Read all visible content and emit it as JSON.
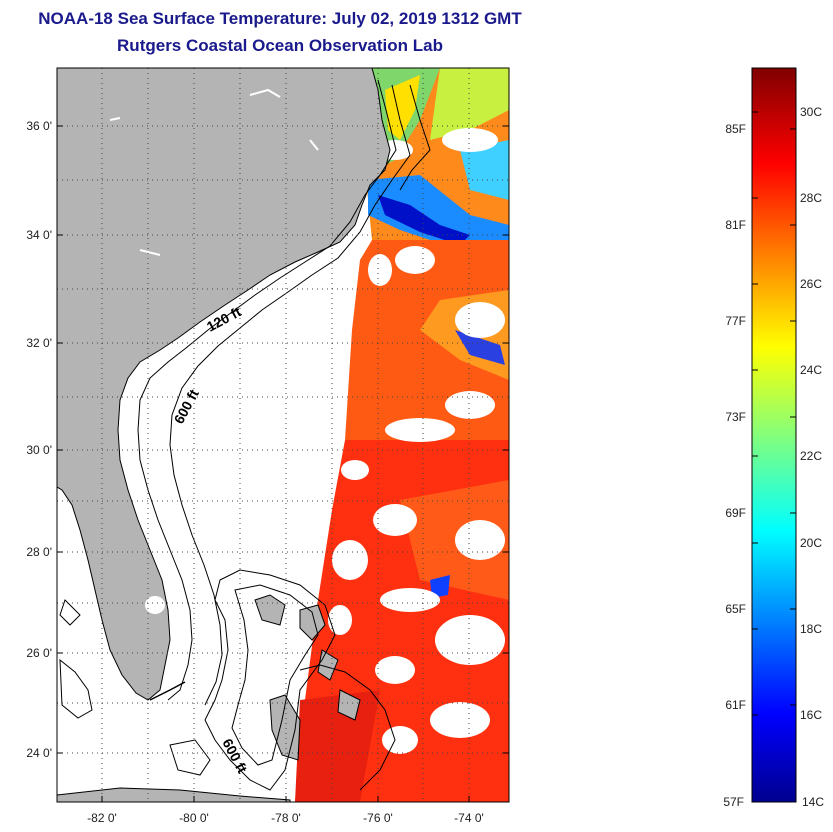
{
  "title": "NOAA-18 Sea Surface Temperature:  July 02, 2019 1312 GMT",
  "subtitle": "Rutgers Coastal Ocean Observation Lab",
  "map": {
    "lat_labels": [
      "36 0'",
      "34 0'",
      "32 0'",
      "30 0'",
      "28 0'",
      "26 0'",
      "24 0'"
    ],
    "lon_labels": [
      "-82 0'",
      "-80 0'",
      "-78 0'",
      "-76 0'",
      "-74 0'"
    ],
    "contour_labels": [
      "120 ft",
      "600 ft",
      "600 ft"
    ],
    "colors": {
      "land": "#b4b4b4",
      "ocean": "#ffffff",
      "contour": "#000000"
    }
  },
  "colorbar": {
    "celsius_labels": [
      "30C",
      "28C",
      "26C",
      "24C",
      "22C",
      "20C",
      "18C",
      "16C"
    ],
    "celsius_min_label": "14C",
    "fahrenheit_labels": [
      "85F",
      "81F",
      "77F",
      "73F",
      "69F",
      "65F",
      "61F"
    ],
    "fahrenheit_min_label": "57F",
    "range_c": [
      14,
      31
    ],
    "colors": [
      "#00008f",
      "#0000ff",
      "#00ffff",
      "#ffff00",
      "#ff0000",
      "#800000"
    ]
  }
}
